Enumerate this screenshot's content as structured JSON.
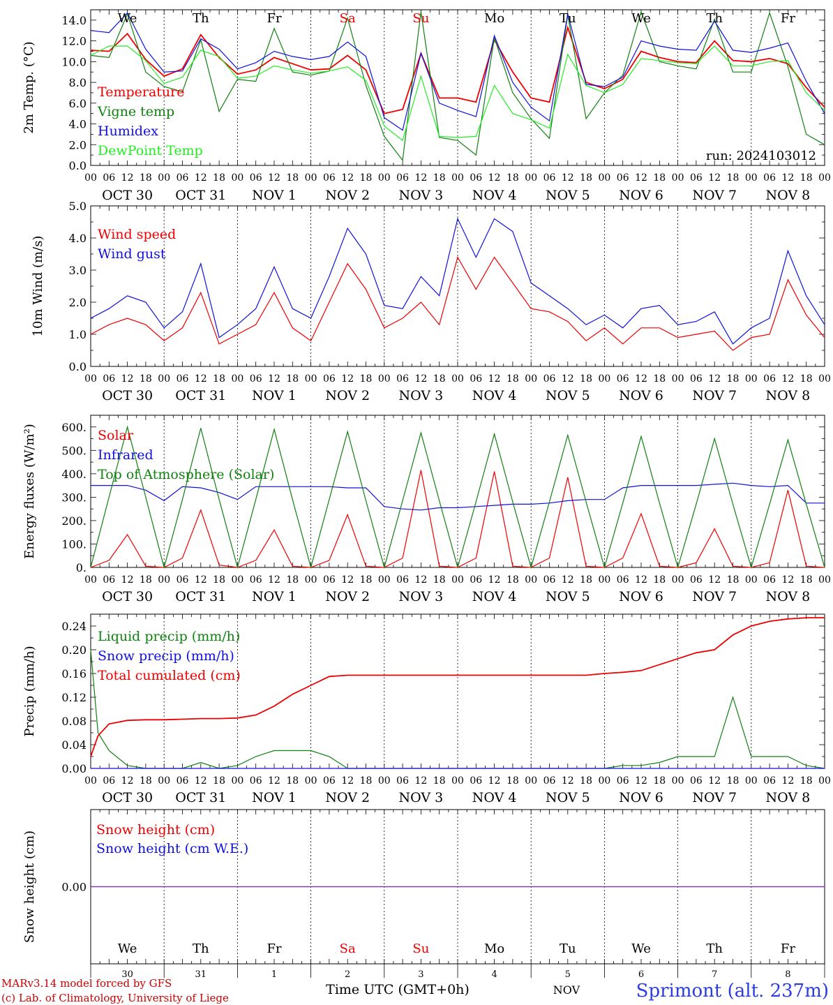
{
  "footer": {
    "model_line": "MARv3.14 model forced by GFS",
    "credit_line": "(c) Lab. of Climatology, University of Liege",
    "time_axis_label": "Time UTC (GMT+0h)",
    "month_label": "NOV",
    "station": "Sprimont (alt. 237m)",
    "day_numbers": [
      "30",
      "31",
      "1",
      "2",
      "3",
      "4",
      "5",
      "6",
      "7",
      "8"
    ]
  },
  "axis": {
    "hour_labels": [
      "00",
      "06",
      "12",
      "18"
    ],
    "final_hour": "00",
    "date_labels": [
      "OCT 30",
      "OCT 31",
      "NOV  1",
      "NOV  2",
      "NOV  3",
      "NOV  4",
      "NOV  5",
      "NOV  6",
      "NOV  7",
      "NOV  8"
    ],
    "weekdays": [
      "We",
      "Th",
      "Fr",
      "Sa",
      "Su",
      "Mo",
      "Tu",
      "We",
      "Th",
      "Fr"
    ],
    "weekend_indices": [
      3,
      4
    ]
  },
  "colors": {
    "red": "#ee0000",
    "green": "#108010",
    "blue": "#1010dd",
    "light_green": "#22ee22",
    "purple": "#7a3aa0"
  },
  "chart_data": [
    {
      "type": "line",
      "ylabel": "2m Temp. (°C)",
      "ylim": [
        0,
        15
      ],
      "yticks": [
        "0.0",
        "2.0",
        "4.0",
        "6.0",
        "8.0",
        "10.0",
        "12.0",
        "14.0"
      ],
      "annotation": "run: 2024103012",
      "x_days": [
        0,
        0.25,
        0.5,
        0.75,
        1,
        1.25,
        1.5,
        1.75,
        2,
        2.25,
        2.5,
        2.75,
        3,
        3.25,
        3.5,
        3.75,
        4,
        4.25,
        4.5,
        4.75,
        5,
        5.25,
        5.5,
        5.75,
        6,
        6.25,
        6.5,
        6.75,
        7,
        7.25,
        7.5,
        7.75,
        8,
        8.25,
        8.5,
        8.75,
        9,
        9.25,
        9.5,
        9.75,
        10
      ],
      "series": [
        {
          "name": "Temperature",
          "color": "#ee0000",
          "values": [
            11.1,
            11.0,
            12.7,
            10.2,
            8.6,
            9.3,
            12.6,
            10.4,
            8.8,
            9.2,
            10.4,
            9.8,
            9.2,
            9.3,
            10.6,
            9.2,
            5.0,
            5.4,
            10.8,
            6.5,
            6.5,
            6.1,
            12.1,
            9.0,
            6.5,
            6.1,
            13.3,
            8.0,
            7.4,
            8.3,
            11.0,
            10.4,
            10.0,
            9.9,
            12.0,
            10.1,
            10.0,
            10.3,
            9.8,
            7.5,
            5.6
          ]
        },
        {
          "name": "Vigne temp",
          "color": "#108010",
          "values": [
            10.6,
            10.4,
            14.6,
            9.0,
            7.6,
            7.1,
            12.1,
            5.2,
            8.3,
            8.1,
            13.2,
            9.0,
            8.7,
            9.1,
            14.2,
            7.7,
            2.8,
            0.5,
            14.8,
            2.7,
            2.4,
            1.0,
            12.3,
            7.0,
            4.5,
            2.6,
            14.5,
            4.5,
            7.0,
            8.7,
            14.8,
            10.0,
            9.6,
            9.3,
            14.1,
            9.0,
            9.0,
            14.7,
            9.5,
            3.0,
            2.0
          ]
        },
        {
          "name": "Humidex",
          "color": "#1010dd",
          "values": [
            13.0,
            12.8,
            14.7,
            11.2,
            9.0,
            9.1,
            12.2,
            11.2,
            9.3,
            9.9,
            11.0,
            10.5,
            10.2,
            10.5,
            11.9,
            10.5,
            4.6,
            3.4,
            10.8,
            6.0,
            5.3,
            4.7,
            12.5,
            8.0,
            5.6,
            4.3,
            14.6,
            7.8,
            7.6,
            8.5,
            12.0,
            11.5,
            11.2,
            11.1,
            13.9,
            11.1,
            10.9,
            11.3,
            11.8,
            8.1,
            5.0
          ]
        },
        {
          "name": "DewPoint Temp",
          "color": "#22ee22",
          "values": [
            10.6,
            11.5,
            11.5,
            10.1,
            7.9,
            8.5,
            11.1,
            10.5,
            8.4,
            8.6,
            9.6,
            9.2,
            8.9,
            9.1,
            9.5,
            8.2,
            3.8,
            2.4,
            8.6,
            2.8,
            2.7,
            2.8,
            7.7,
            5.0,
            4.4,
            3.6,
            10.7,
            7.7,
            7.0,
            7.8,
            10.3,
            10.1,
            9.9,
            9.8,
            11.5,
            9.6,
            9.6,
            10.0,
            10.1,
            7.0,
            5.3
          ]
        }
      ]
    },
    {
      "type": "line",
      "ylabel": "10m Wind (m/s)",
      "ylim": [
        0,
        5
      ],
      "yticks": [
        "0.0",
        "1.0",
        "2.0",
        "3.0",
        "4.0",
        "5.0"
      ],
      "x_days": [
        0,
        0.25,
        0.5,
        0.75,
        1,
        1.25,
        1.5,
        1.75,
        2,
        2.25,
        2.5,
        2.75,
        3,
        3.25,
        3.5,
        3.75,
        4,
        4.25,
        4.5,
        4.75,
        5,
        5.25,
        5.5,
        5.75,
        6,
        6.25,
        6.5,
        6.75,
        7,
        7.25,
        7.5,
        7.75,
        8,
        8.25,
        8.5,
        8.75,
        9,
        9.25,
        9.5,
        9.75,
        10
      ],
      "series": [
        {
          "name": "Wind speed",
          "color": "#ee0000",
          "values": [
            1.0,
            1.3,
            1.5,
            1.3,
            0.8,
            1.2,
            2.3,
            0.7,
            1.0,
            1.3,
            2.3,
            1.2,
            0.8,
            2.0,
            3.2,
            2.4,
            1.2,
            1.5,
            2.0,
            1.3,
            3.4,
            2.4,
            3.4,
            2.6,
            1.8,
            1.7,
            1.4,
            0.8,
            1.2,
            0.7,
            1.2,
            1.2,
            0.9,
            1.0,
            1.1,
            0.5,
            0.9,
            1.0,
            2.7,
            1.6,
            0.9
          ]
        },
        {
          "name": "Wind gust",
          "color": "#1010dd",
          "values": [
            1.5,
            1.8,
            2.2,
            2.0,
            1.2,
            1.7,
            3.2,
            0.9,
            1.3,
            1.8,
            3.1,
            1.8,
            1.5,
            2.8,
            4.3,
            3.5,
            1.9,
            1.8,
            2.8,
            2.2,
            4.6,
            3.4,
            4.6,
            4.2,
            2.6,
            2.2,
            1.8,
            1.3,
            1.6,
            1.2,
            1.8,
            1.9,
            1.3,
            1.4,
            1.7,
            0.7,
            1.2,
            1.5,
            3.6,
            2.2,
            1.3
          ]
        }
      ]
    },
    {
      "type": "line",
      "ylabel": "Energy fluxes (W/m²)",
      "ylim": [
        0,
        650
      ],
      "yticks": [
        "0.",
        "100.",
        "200.",
        "300.",
        "400.",
        "500.",
        "600."
      ],
      "x_days": [
        0,
        0.25,
        0.5,
        0.75,
        1,
        1.25,
        1.5,
        1.75,
        2,
        2.25,
        2.5,
        2.75,
        3,
        3.25,
        3.5,
        3.75,
        4,
        4.25,
        4.5,
        4.75,
        5,
        5.25,
        5.5,
        5.75,
        6,
        6.25,
        6.5,
        6.75,
        7,
        7.25,
        7.5,
        7.75,
        8,
        8.25,
        8.5,
        8.75,
        9,
        9.25,
        9.5,
        9.75,
        10
      ],
      "series": [
        {
          "name": "Solar",
          "color": "#ee0000",
          "values": [
            0,
            30,
            140,
            5,
            0,
            40,
            245,
            10,
            0,
            30,
            160,
            5,
            0,
            30,
            225,
            5,
            0,
            40,
            415,
            5,
            0,
            40,
            410,
            5,
            0,
            40,
            385,
            5,
            0,
            40,
            230,
            5,
            0,
            20,
            165,
            5,
            0,
            20,
            330,
            5,
            0
          ]
        },
        {
          "name": "Infrared",
          "color": "#1010dd",
          "values": [
            350,
            350,
            350,
            330,
            285,
            345,
            340,
            320,
            290,
            345,
            345,
            345,
            345,
            345,
            340,
            340,
            260,
            250,
            245,
            255,
            255,
            260,
            265,
            270,
            270,
            275,
            285,
            290,
            290,
            340,
            350,
            350,
            350,
            350,
            355,
            360,
            350,
            345,
            350,
            275,
            275
          ]
        },
        {
          "name": "Top of Atmosphere (Solar)",
          "color": "#108010",
          "values": [
            0,
            300,
            600,
            300,
            0,
            290,
            595,
            290,
            0,
            290,
            590,
            290,
            0,
            290,
            580,
            285,
            0,
            285,
            575,
            285,
            0,
            280,
            570,
            280,
            0,
            280,
            565,
            280,
            0,
            275,
            560,
            275,
            0,
            270,
            550,
            270,
            0,
            270,
            545,
            270,
            0
          ]
        }
      ]
    },
    {
      "type": "line",
      "ylabel": "Precip (mm/h)",
      "ylim": [
        0,
        0.26
      ],
      "yticks": [
        "0.00",
        "0.04",
        "0.08",
        "0.12",
        "0.16",
        "0.20",
        "0.24"
      ],
      "x_days": [
        0,
        0.1,
        0.25,
        0.5,
        0.75,
        1,
        1.25,
        1.5,
        1.75,
        2,
        2.25,
        2.5,
        2.75,
        3,
        3.25,
        3.5,
        3.75,
        4,
        4.25,
        4.5,
        4.75,
        5,
        5.25,
        5.5,
        5.75,
        6,
        6.25,
        6.5,
        6.75,
        7,
        7.25,
        7.5,
        7.75,
        8,
        8.25,
        8.5,
        8.75,
        9,
        9.25,
        9.5,
        9.75,
        10
      ],
      "series": [
        {
          "name": "Liquid precip (mm/h)",
          "color": "#108010",
          "values": [
            0.2,
            0.06,
            0.03,
            0.005,
            0.0,
            0.0,
            0.0,
            0.01,
            0.0,
            0.005,
            0.02,
            0.03,
            0.03,
            0.03,
            0.02,
            0.0,
            0.0,
            0.0,
            0.0,
            0.0,
            0.0,
            0.0,
            0.0,
            0.0,
            0.0,
            0.0,
            0.0,
            0.0,
            0.0,
            0.0,
            0.005,
            0.005,
            0.01,
            0.02,
            0.02,
            0.02,
            0.12,
            0.02,
            0.02,
            0.02,
            0.005,
            0.0
          ]
        },
        {
          "name": "Snow precip (mm/h)",
          "color": "#1010dd",
          "values": [
            0,
            0,
            0,
            0,
            0,
            0,
            0,
            0,
            0,
            0,
            0,
            0,
            0,
            0,
            0,
            0,
            0,
            0,
            0,
            0,
            0,
            0,
            0,
            0,
            0,
            0,
            0,
            0,
            0,
            0,
            0,
            0,
            0,
            0,
            0,
            0,
            0,
            0,
            0,
            0,
            0,
            0
          ]
        },
        {
          "name": "Total cumulated (cm)",
          "color": "#ee0000",
          "values": [
            0.02,
            0.055,
            0.075,
            0.081,
            0.082,
            0.082,
            0.083,
            0.084,
            0.084,
            0.085,
            0.09,
            0.105,
            0.125,
            0.14,
            0.155,
            0.157,
            0.157,
            0.157,
            0.157,
            0.157,
            0.157,
            0.157,
            0.157,
            0.157,
            0.157,
            0.157,
            0.157,
            0.157,
            0.157,
            0.16,
            0.162,
            0.165,
            0.175,
            0.185,
            0.195,
            0.2,
            0.225,
            0.24,
            0.248,
            0.252,
            0.254,
            0.254
          ]
        }
      ]
    },
    {
      "type": "line",
      "ylabel": "Snow height (cm)",
      "ylim": [
        -1,
        1
      ],
      "yticks": [
        "0.00"
      ],
      "x_days": [
        0,
        10
      ],
      "series": [
        {
          "name": "Snow height (cm)",
          "color": "#ee0000",
          "values": [
            0,
            0
          ]
        },
        {
          "name": "Snow height (cm W.E.)",
          "color": "#1010dd",
          "values": [
            0,
            0
          ]
        }
      ]
    }
  ]
}
